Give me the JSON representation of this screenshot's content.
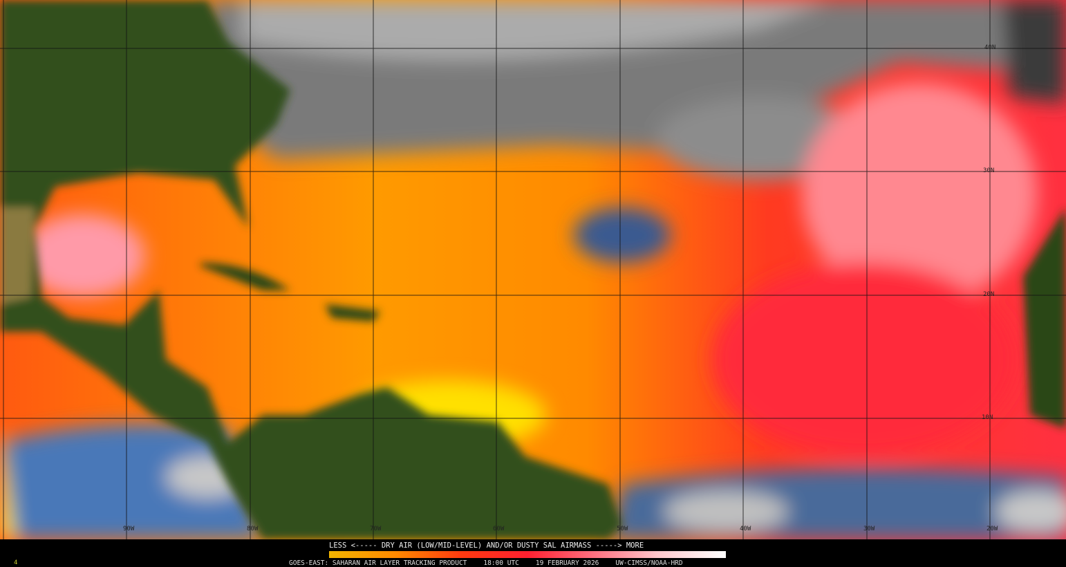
{
  "legend": {
    "title": "LESS <----- DRY AIR (LOW/MID-LEVEL) AND/OR DUSTY SAL AIRMASS -----> MORE",
    "colors": [
      "#f2b400",
      "#ff8a00",
      "#ff3a10",
      "#ff2030",
      "#ff7080",
      "#ffc8cc",
      "#ffffff"
    ]
  },
  "footer": {
    "product": "GOES-EAST: SAHARAN AIR LAYER TRACKING PRODUCT",
    "time": "18:00 UTC",
    "date": "19 FEBRUARY 2026",
    "credit": "UW-CIMSS/NOAA-HRD",
    "frame": "4"
  },
  "grid": {
    "lon_labels": [
      "90W",
      "80W",
      "70W",
      "60W",
      "50W",
      "40W",
      "30W",
      "20W"
    ],
    "lat_labels": [
      "40N",
      "30N",
      "20N",
      "10N"
    ]
  },
  "colors": {
    "land": "#2f4a18",
    "ocean_clear": "#4a78b8",
    "cloud": "#9a9a9a",
    "dry_air": "#ff4a10"
  }
}
